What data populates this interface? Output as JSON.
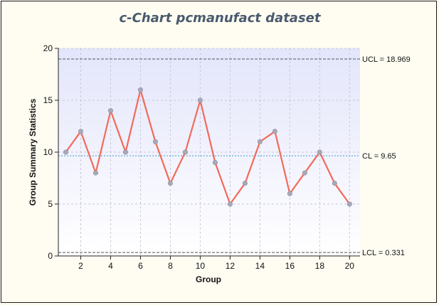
{
  "chart_data": {
    "type": "line",
    "title": "c-Chart pcmanufact dataset",
    "xlabel": "Group",
    "ylabel": "Group Summary Statistics",
    "xlim": [
      0.5,
      20.7
    ],
    "ylim": [
      0,
      20
    ],
    "xticks": [
      2,
      4,
      6,
      8,
      10,
      12,
      14,
      16,
      18,
      20
    ],
    "yticks": [
      0,
      5,
      10,
      15,
      20
    ],
    "grid": true,
    "x": [
      1,
      2,
      3,
      4,
      5,
      6,
      7,
      8,
      9,
      10,
      11,
      12,
      13,
      14,
      15,
      16,
      17,
      18,
      19,
      20
    ],
    "series": [
      {
        "values": [
          10,
          12,
          8,
          14,
          10,
          16,
          11,
          7,
          10,
          15,
          9,
          5,
          7,
          11,
          12,
          6,
          8,
          10,
          7,
          5
        ]
      }
    ],
    "control_limits": [
      {
        "label": "UCL = 18.969",
        "value": 18.969
      },
      {
        "label": "CL = 9.65",
        "value": 9.65
      },
      {
        "label": "LCL = 0.331",
        "value": 0.331
      }
    ],
    "colors": {
      "line": "#f26a5a",
      "marker": "#a9a9b8",
      "center_line": "#3aa0c8",
      "limit_line": "#555555",
      "plot_bg_top": "#e3e5fb",
      "plot_bg_bottom": "#ffffff"
    }
  }
}
